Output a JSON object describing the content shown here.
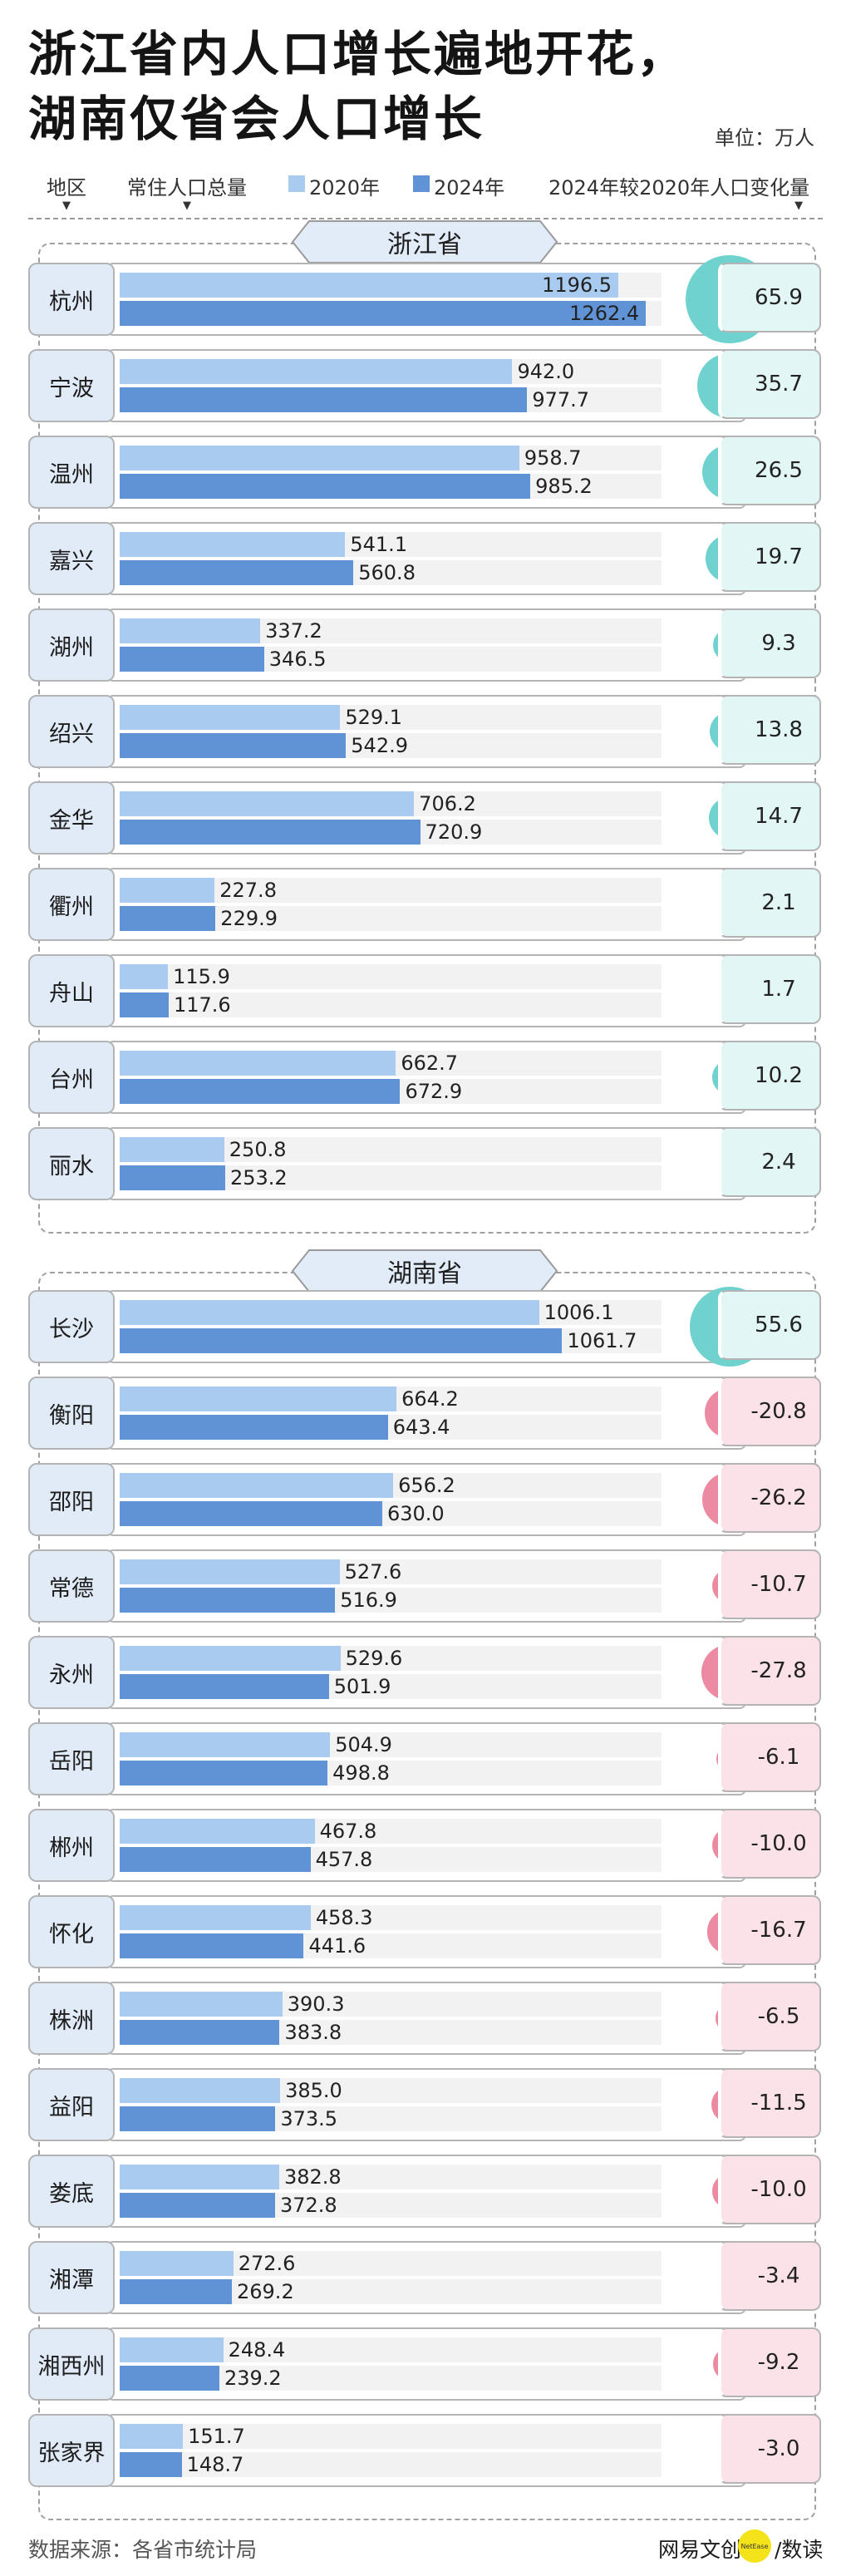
{
  "title_line1": "浙江省内人口增长遍地开花，",
  "title_line2": "湖南仅省会人口增长",
  "unit": "单位：万人",
  "headers": {
    "region": "地区",
    "total": "常住人口总量",
    "legend_2020": "2020年",
    "legend_2024": "2024年",
    "change": "2024年较2020年人口变化量",
    "arrow": "▼"
  },
  "colors": {
    "bar_2020": "#a9cbef",
    "bar_2024": "#5f93d5",
    "positive_circle": "#6fd2ce",
    "negative_circle": "#eb8aa0",
    "positive_cell": "#e2f6f5",
    "negative_cell": "#fbe2e8"
  },
  "chart_data": [
    {
      "type": "bar",
      "province": "浙江省",
      "series": [
        {
          "name": "2020年"
        },
        {
          "name": "2024年"
        },
        {
          "name": "2024年较2020年人口变化量"
        }
      ],
      "rows": [
        {
          "city": "杭州",
          "v2020": "1196.5",
          "v2024": "1262.4",
          "change": "65.9"
        },
        {
          "city": "宁波",
          "v2020": "942.0",
          "v2024": "977.7",
          "change": "35.7"
        },
        {
          "city": "温州",
          "v2020": "958.7",
          "v2024": "985.2",
          "change": "26.5"
        },
        {
          "city": "嘉兴",
          "v2020": "541.1",
          "v2024": "560.8",
          "change": "19.7"
        },
        {
          "city": "湖州",
          "v2020": "337.2",
          "v2024": "346.5",
          "change": "9.3"
        },
        {
          "city": "绍兴",
          "v2020": "529.1",
          "v2024": "542.9",
          "change": "13.8"
        },
        {
          "city": "金华",
          "v2020": "706.2",
          "v2024": "720.9",
          "change": "14.7"
        },
        {
          "city": "衢州",
          "v2020": "227.8",
          "v2024": "229.9",
          "change": "2.1"
        },
        {
          "city": "舟山",
          "v2020": "115.9",
          "v2024": "117.6",
          "change": "1.7"
        },
        {
          "city": "台州",
          "v2020": "662.7",
          "v2024": "672.9",
          "change": "10.2"
        },
        {
          "city": "丽水",
          "v2020": "250.8",
          "v2024": "253.2",
          "change": "2.4"
        }
      ]
    },
    {
      "type": "bar",
      "province": "湖南省",
      "series": [
        {
          "name": "2020年"
        },
        {
          "name": "2024年"
        },
        {
          "name": "2024年较2020年人口变化量"
        }
      ],
      "rows": [
        {
          "city": "长沙",
          "v2020": "1006.1",
          "v2024": "1061.7",
          "change": "55.6"
        },
        {
          "city": "衡阳",
          "v2020": "664.2",
          "v2024": "643.4",
          "change": "-20.8"
        },
        {
          "city": "邵阳",
          "v2020": "656.2",
          "v2024": "630.0",
          "change": "-26.2"
        },
        {
          "city": "常德",
          "v2020": "527.6",
          "v2024": "516.9",
          "change": "-10.7"
        },
        {
          "city": "永州",
          "v2020": "529.6",
          "v2024": "501.9",
          "change": "-27.8"
        },
        {
          "city": "岳阳",
          "v2020": "504.9",
          "v2024": "498.8",
          "change": "-6.1"
        },
        {
          "city": "郴州",
          "v2020": "467.8",
          "v2024": "457.8",
          "change": "-10.0"
        },
        {
          "city": "怀化",
          "v2020": "458.3",
          "v2024": "441.6",
          "change": "-16.7"
        },
        {
          "city": "株洲",
          "v2020": "390.3",
          "v2024": "383.8",
          "change": "-6.5"
        },
        {
          "city": "益阳",
          "v2020": "385.0",
          "v2024": "373.5",
          "change": "-11.5"
        },
        {
          "city": "娄底",
          "v2020": "382.8",
          "v2024": "372.8",
          "change": "-10.0"
        },
        {
          "city": "湘潭",
          "v2020": "272.6",
          "v2024": "269.2",
          "change": "-3.4"
        },
        {
          "city": "湘西州",
          "v2020": "248.4",
          "v2024": "239.2",
          "change": "-9.2"
        },
        {
          "city": "张家界",
          "v2020": "151.7",
          "v2024": "148.7",
          "change": "-3.0"
        }
      ]
    }
  ],
  "source": "数据来源：各省市统计局",
  "brand": {
    "name1": "网易文创",
    "badge": "NetEase",
    "name2": "/数读"
  }
}
